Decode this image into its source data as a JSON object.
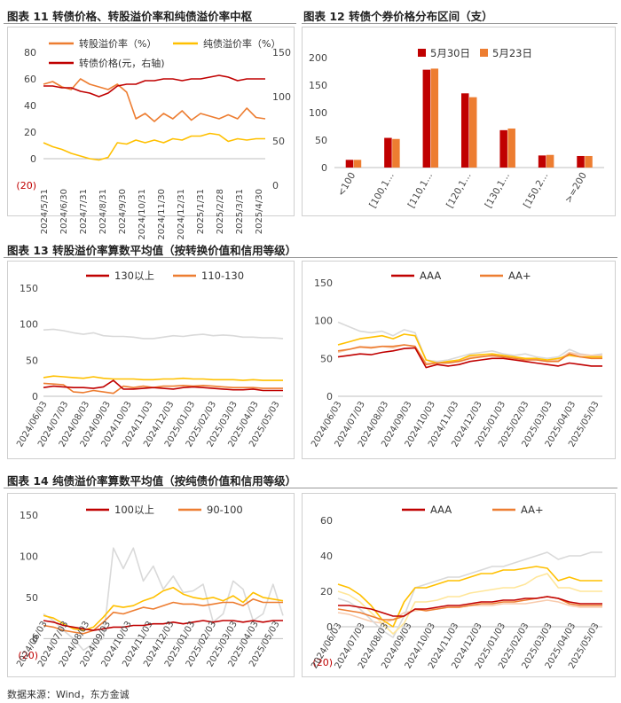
{
  "captions": {
    "fig11": "图表 11  转债价格、转股溢价率和纯债溢价率中枢",
    "fig12": "图表 12  转债个券价格分布区间（支）",
    "fig13": "图表 13  转股溢价率算数平均值（按转换价值和信用等级）",
    "fig14": "图表 14  纯债溢价率算数平均值（按纯债价值和信用等级）"
  },
  "source": "数据来源：Wind，东方金诚",
  "colors": {
    "dark_red": "#C00000",
    "orange": "#ED7D31",
    "yellow": "#FFC000",
    "light_gray": "#D9D9D9",
    "light_orange": "#F8CBAD",
    "light_yellow": "#FFE699"
  },
  "chart_data": [
    {
      "id": "fig11",
      "type": "line",
      "yticks_left": [
        "80",
        "60",
        "40",
        "20",
        "0",
        "(20)"
      ],
      "yticks_right": [
        "150",
        "100",
        "50",
        "0"
      ],
      "ylim_left": [
        -20,
        80
      ],
      "ylim_right": [
        0,
        150
      ],
      "x_ticks": [
        "2024/5/31",
        "2024/6/30",
        "2024/7/31",
        "2024/8/31",
        "2024/9/30",
        "2024/10/31",
        "2024/11/30",
        "2024/12/31",
        "2025/1/31",
        "2025/2/28",
        "2025/3/31",
        "2025/4/30"
      ],
      "series": [
        {
          "name": "转股溢价率（%）",
          "axis": "left",
          "color": "#ED7D31",
          "values": [
            56,
            58,
            54,
            52,
            60,
            56,
            54,
            52,
            56,
            50,
            30,
            34,
            28,
            34,
            30,
            36,
            29,
            34,
            32,
            30,
            33,
            30,
            38,
            31,
            30
          ]
        },
        {
          "name": "纯债溢价率（%）",
          "axis": "left",
          "color": "#FFC000",
          "values": [
            12,
            9,
            7,
            4,
            2,
            0,
            -1,
            1,
            12,
            11,
            14,
            12,
            14,
            12,
            15,
            14,
            17,
            17,
            19,
            18,
            13,
            15,
            14,
            15,
            15
          ]
        },
        {
          "name": "转债价格(元，右轴)",
          "axis": "right",
          "color": "#C00000",
          "values": [
            112,
            112,
            110,
            110,
            106,
            104,
            100,
            104,
            112,
            114,
            114,
            118,
            118,
            120,
            120,
            118,
            120,
            120,
            122,
            124,
            122,
            118,
            120,
            120,
            120
          ]
        }
      ]
    },
    {
      "id": "fig12",
      "type": "bar",
      "categories": [
        "<100",
        "[100,1...",
        "[110,1...",
        "[120,1...",
        "[130,1...",
        "[150,2...",
        ">=200"
      ],
      "ylim": [
        0,
        200
      ],
      "yticks": [
        "200",
        "150",
        "100",
        "50",
        "0"
      ],
      "series": [
        {
          "name": "5月30日",
          "color": "#C00000",
          "values": [
            14,
            54,
            178,
            135,
            68,
            22,
            21
          ]
        },
        {
          "name": "5月23日",
          "color": "#ED7D31",
          "values": [
            14,
            52,
            180,
            128,
            71,
            23,
            21
          ]
        }
      ]
    },
    {
      "id": "fig13a",
      "type": "line",
      "ylim": [
        0,
        150
      ],
      "yticks": [
        "150",
        "100",
        "50",
        "0"
      ],
      "x_ticks": [
        "2024/06/03",
        "2024/07/03",
        "2024/08/03",
        "2024/09/03",
        "2024/10/03",
        "2024/11/03",
        "2024/12/03",
        "2025/01/03",
        "2025/02/03",
        "2025/03/03",
        "2025/04/03",
        "2025/05/03"
      ],
      "legend": [
        "130以上",
        "110-130"
      ],
      "series": [
        {
          "name": "130以上",
          "color": "#C00000",
          "values": [
            12,
            14,
            13,
            12,
            12,
            11,
            13,
            22,
            10,
            10,
            11,
            12,
            11,
            10,
            12,
            13,
            12,
            11,
            10,
            9,
            9,
            10,
            8,
            8,
            8
          ]
        },
        {
          "color": "#ED7D31",
          "values": [
            18,
            17,
            16,
            6,
            5,
            8,
            6,
            4,
            14,
            12,
            14,
            12,
            14,
            14,
            15,
            14,
            15,
            14,
            13,
            12,
            12,
            12,
            11,
            11,
            11
          ]
        },
        {
          "color": "#FFC000",
          "values": [
            26,
            28,
            27,
            26,
            25,
            27,
            25,
            24,
            24,
            24,
            23,
            23,
            24,
            24,
            25,
            24,
            24,
            23,
            23,
            23,
            22,
            23,
            22,
            22,
            22
          ]
        },
        {
          "color": "#D9D9D9",
          "values": [
            92,
            93,
            91,
            88,
            86,
            88,
            84,
            83,
            83,
            82,
            80,
            80,
            82,
            84,
            83,
            85,
            86,
            84,
            85,
            84,
            82,
            82,
            81,
            81,
            80
          ]
        }
      ]
    },
    {
      "id": "fig13b",
      "type": "line",
      "ylim": [
        0,
        150
      ],
      "yticks": [
        "150",
        "100",
        "50",
        "0"
      ],
      "x_ticks": [
        "2024/06/03",
        "2024/07/03",
        "2024/08/03",
        "2024/09/03",
        "2024/10/03",
        "2024/11/03",
        "2024/12/03",
        "2025/01/03",
        "2025/02/03",
        "2025/03/03",
        "2025/04/03",
        "2025/05/03"
      ],
      "legend": [
        "AAA",
        "AA+"
      ],
      "series": [
        {
          "name": "AAA",
          "color": "#C00000",
          "values": [
            52,
            54,
            56,
            55,
            58,
            60,
            63,
            64,
            38,
            42,
            40,
            42,
            46,
            48,
            50,
            50,
            48,
            46,
            44,
            42,
            40,
            44,
            42,
            40,
            40
          ]
        },
        {
          "name": "AA+",
          "color": "#ED7D31",
          "values": [
            60,
            62,
            65,
            64,
            66,
            66,
            68,
            66,
            42,
            44,
            44,
            46,
            50,
            52,
            54,
            52,
            50,
            48,
            48,
            46,
            46,
            56,
            52,
            50,
            50
          ]
        },
        {
          "color": "#FFC000",
          "values": [
            68,
            72,
            76,
            78,
            80,
            76,
            82,
            80,
            48,
            44,
            46,
            48,
            54,
            55,
            56,
            54,
            52,
            50,
            50,
            48,
            50,
            54,
            52,
            52,
            52
          ]
        },
        {
          "color": "#F8CBAD",
          "values": [
            58,
            62,
            66,
            65,
            66,
            64,
            68,
            66,
            44,
            44,
            45,
            48,
            52,
            53,
            53,
            52,
            50,
            50,
            49,
            47,
            48,
            58,
            55,
            54,
            54
          ]
        },
        {
          "color": "#D9D9D9",
          "values": [
            98,
            92,
            86,
            84,
            86,
            80,
            88,
            84,
            48,
            46,
            48,
            52,
            56,
            58,
            60,
            56,
            54,
            56,
            52,
            50,
            52,
            62,
            56,
            54,
            56
          ]
        }
      ]
    },
    {
      "id": "fig14a",
      "type": "line",
      "ylim": [
        -20,
        150
      ],
      "yticks": [
        "150",
        "100",
        "50",
        "0",
        "(20)"
      ],
      "x_ticks": [
        "2024/06/03",
        "2024/07/03",
        "2024/08/03",
        "2024/09/03",
        "2024/10/03",
        "2024/11/03",
        "2024/12/03",
        "2025/01/03",
        "2025/02/03",
        "2025/03/03",
        "2025/04/03",
        "2025/05/03"
      ],
      "legend": [
        "100以上",
        "90-100"
      ],
      "series": [
        {
          "name": "100以上",
          "color": "#C00000",
          "values": [
            22,
            20,
            16,
            14,
            12,
            10,
            12,
            14,
            14,
            16,
            16,
            18,
            18,
            20,
            18,
            20,
            22,
            20,
            22,
            22,
            20,
            22,
            20,
            22,
            22
          ]
        },
        {
          "name": "90-100",
          "color": "#ED7D31",
          "values": [
            16,
            14,
            10,
            8,
            6,
            10,
            20,
            32,
            30,
            34,
            38,
            36,
            40,
            44,
            42,
            42,
            40,
            42,
            44,
            44,
            40,
            48,
            44,
            44,
            44
          ]
        },
        {
          "color": "#FFC000",
          "values": [
            28,
            25,
            18,
            12,
            10,
            14,
            26,
            40,
            38,
            40,
            46,
            50,
            58,
            62,
            54,
            50,
            48,
            50,
            46,
            52,
            44,
            56,
            50,
            48,
            46
          ]
        },
        {
          "color": "#D9D9D9",
          "values": [
            30,
            22,
            10,
            0,
            -14,
            -6,
            0,
            110,
            85,
            110,
            70,
            88,
            60,
            76,
            56,
            58,
            66,
            20,
            30,
            70,
            60,
            22,
            30,
            66,
            28
          ]
        }
      ]
    },
    {
      "id": "fig14b",
      "type": "line",
      "ylim": [
        -20,
        60
      ],
      "yticks": [
        "60",
        "40",
        "20",
        "0",
        "(20)"
      ],
      "x_ticks": [
        "2024/06/03",
        "2024/07/03",
        "2024/08/03",
        "2024/09/03",
        "2024/10/03",
        "2024/11/03",
        "2024/12/03",
        "2025/01/03",
        "2025/02/03",
        "2025/03/03",
        "2025/04/03",
        "2025/05/03"
      ],
      "legend": [
        "AAA",
        "AA+"
      ],
      "series": [
        {
          "name": "AAA",
          "color": "#C00000",
          "values": [
            12,
            12,
            11,
            10,
            8,
            6,
            6,
            10,
            10,
            11,
            12,
            12,
            13,
            14,
            14,
            15,
            15,
            16,
            16,
            17,
            16,
            14,
            13,
            13,
            13
          ]
        },
        {
          "name": "AA+",
          "color": "#ED7D31",
          "values": [
            10,
            9,
            8,
            6,
            4,
            4,
            6,
            10,
            9,
            10,
            11,
            11,
            12,
            13,
            13,
            14,
            14,
            15,
            16,
            17,
            16,
            13,
            12,
            12,
            12
          ]
        },
        {
          "color": "#FFC000",
          "values": [
            24,
            22,
            18,
            12,
            4,
            0,
            14,
            22,
            22,
            24,
            26,
            26,
            28,
            30,
            30,
            32,
            32,
            33,
            34,
            33,
            26,
            28,
            26,
            26,
            26
          ]
        },
        {
          "color": "#FFE699",
          "values": [
            20,
            18,
            14,
            8,
            2,
            -4,
            2,
            14,
            14,
            15,
            17,
            17,
            19,
            20,
            21,
            22,
            22,
            24,
            28,
            30,
            22,
            22,
            20,
            20,
            20
          ]
        },
        {
          "color": "#D9D9D9",
          "values": [
            16,
            14,
            10,
            4,
            -2,
            -6,
            6,
            22,
            24,
            26,
            28,
            28,
            30,
            32,
            34,
            34,
            36,
            38,
            40,
            42,
            38,
            40,
            40,
            42,
            42
          ]
        },
        {
          "color": "#F8CBAD",
          "values": [
            8,
            7,
            5,
            3,
            2,
            4,
            8,
            9,
            10,
            10,
            11,
            11,
            12,
            12,
            12,
            13,
            13,
            13,
            14,
            15,
            14,
            12,
            11,
            11,
            11
          ]
        }
      ]
    }
  ]
}
